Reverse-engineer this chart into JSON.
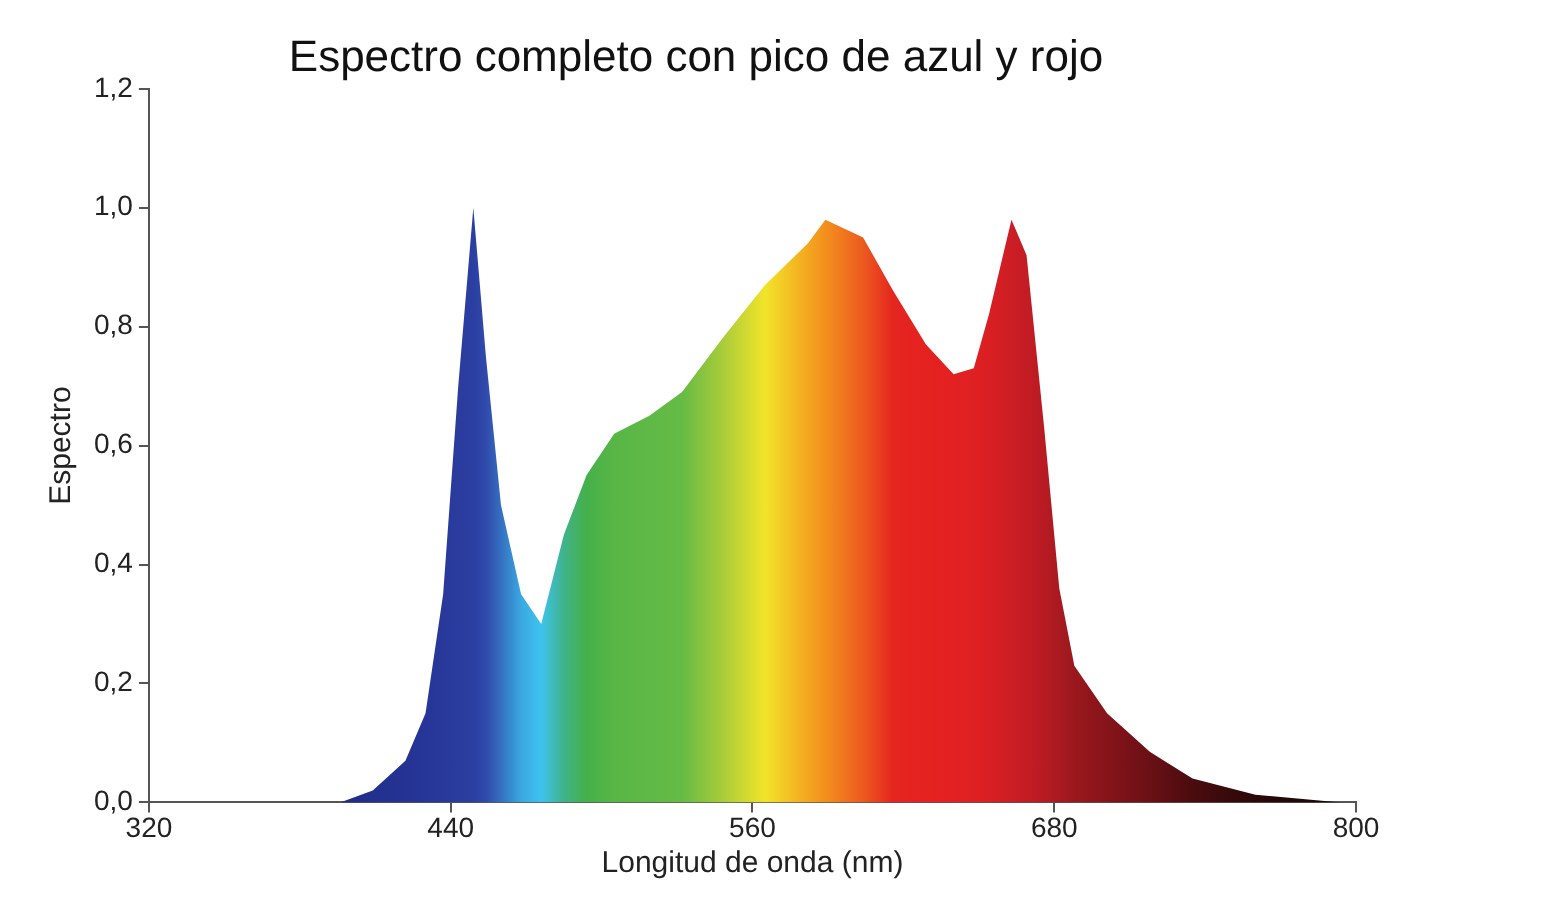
{
  "chart_data": {
    "type": "area",
    "title": "Espectro completo con pico de azul y rojo",
    "xlabel": "Longitud de onda (nm)",
    "ylabel": "Espectro",
    "xlim": [
      320,
      800
    ],
    "xticks": [
      320,
      440,
      560,
      680,
      800
    ],
    "ylim": [
      0,
      1.2
    ],
    "yticks": [
      {
        "value": 0,
        "label": "0,0"
      },
      {
        "value": 0.2,
        "label": "0,2"
      },
      {
        "value": 0.4,
        "label": "0,4"
      },
      {
        "value": 0.6,
        "label": "0,6"
      },
      {
        "value": 0.8,
        "label": "0,8"
      },
      {
        "value": 1,
        "label": "1,0"
      },
      {
        "value": 1.2,
        "label": "1,2"
      }
    ],
    "grid": false,
    "legend": false,
    "series": [
      {
        "x": [
          320,
          396,
          409,
          422,
          430,
          437,
          443,
          449,
          454,
          460,
          468,
          476,
          485,
          494,
          505,
          519,
          532,
          548,
          565,
          582,
          589,
          604,
          616,
          629,
          640,
          648,
          654,
          663,
          669,
          676,
          682,
          688,
          701,
          718,
          735,
          760,
          794
        ],
        "values": [
          0,
          0,
          0.02,
          0.07,
          0.15,
          0.35,
          0.7,
          1,
          0.75,
          0.5,
          0.35,
          0.3,
          0.45,
          0.55,
          0.62,
          0.65,
          0.69,
          0.78,
          0.87,
          0.94,
          0.98,
          0.95,
          0.86,
          0.77,
          0.72,
          0.73,
          0.82,
          0.98,
          0.92,
          0.63,
          0.36,
          0.23,
          0.15,
          0.085,
          0.04,
          0.013,
          0
        ],
        "colors": [
          "#1c2a80",
          "#1f2d88",
          "#22308e",
          "#243394",
          "#263698",
          "#28399b",
          "#2a3c9e",
          "#2b3fa2",
          "#2f4aab",
          "#3570c0",
          "#3aa8e2",
          "#3ec3ee",
          "#3fb38a",
          "#45b04a",
          "#58b646",
          "#5fb946",
          "#66bb45",
          "#a8cc3a",
          "#f2e42a",
          "#f4a61f",
          "#f3901d",
          "#ec5a1f",
          "#e5251f",
          "#e42220",
          "#e22121",
          "#df2022",
          "#d91f23",
          "#cc1e24",
          "#c41c24",
          "#b81b23",
          "#a81a20",
          "#9a181d",
          "#86141a",
          "#6a1015",
          "#4a0c0e",
          "#2a0808",
          "#1a0606"
        ]
      }
    ]
  }
}
